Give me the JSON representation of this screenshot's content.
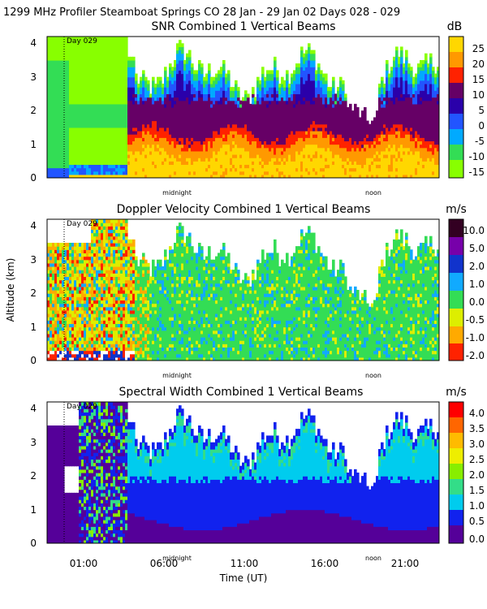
{
  "header": "1299 MHz Profiler  Steamboat Springs CO  28 Jan - 29 Jan 02 Days 028 - 029",
  "chart_data": [
    {
      "type": "heatmap",
      "title": "SNR Combined 1 Vertical Beams",
      "unit": "dB",
      "colorbar_ticks": [
        "25",
        "20",
        "15",
        "10",
        "5",
        "0",
        "-5",
        "-10",
        "-15"
      ],
      "colors": [
        "#ffd700",
        "#ff9900",
        "#ff2200",
        "#660066",
        "#2a00aa",
        "#2255ff",
        "#00aaff",
        "#33dd55",
        "#88ff00"
      ],
      "yticks": [
        "4",
        "3",
        "2",
        "1",
        "0"
      ],
      "ylim": [
        0,
        4.2
      ],
      "markers": {
        "day": "Day 029",
        "midnight": "midnight",
        "noon": "noon"
      }
    },
    {
      "type": "heatmap",
      "title": "Doppler Velocity Combined 1 Vertical Beams",
      "unit": "m/s",
      "colorbar_ticks": [
        "10.0",
        "5.0",
        "2.0",
        "1.0",
        "0.0",
        "-0.5",
        "-1.0",
        "-2.0"
      ],
      "colors": [
        "#330022",
        "#7700aa",
        "#1133cc",
        "#11aaff",
        "#33dd55",
        "#ddee00",
        "#ffaa00",
        "#ff2200"
      ],
      "yticks": [
        "4",
        "3",
        "2",
        "1",
        "0"
      ],
      "ylim": [
        0,
        4.2
      ],
      "markers": {
        "day": "Day 029",
        "midnight": "midnight",
        "noon": "noon"
      }
    },
    {
      "type": "heatmap",
      "title": "Spectral Width Combined 1 Vertical Beams",
      "unit": "m/s",
      "colorbar_ticks": [
        "4.0",
        "3.5",
        "3.0",
        "2.5",
        "2.0",
        "1.5",
        "1.0",
        "0.5",
        "0.0"
      ],
      "colors": [
        "#ff0000",
        "#ff6600",
        "#ffbb00",
        "#eeee00",
        "#88ee00",
        "#33dd88",
        "#00ccee",
        "#1122ee",
        "#550099"
      ],
      "yticks": [
        "4",
        "3",
        "2",
        "1",
        "0"
      ],
      "ylim": [
        0,
        4.2
      ],
      "markers": {
        "day": "Day 029",
        "midnight": "midnight",
        "noon": "noon"
      }
    }
  ],
  "axes": {
    "ylabel": "Altitude (km)",
    "xlabel": "Time (UT)",
    "xticks": [
      "01:00",
      "06:00",
      "11:00",
      "16:00",
      "21:00"
    ]
  }
}
